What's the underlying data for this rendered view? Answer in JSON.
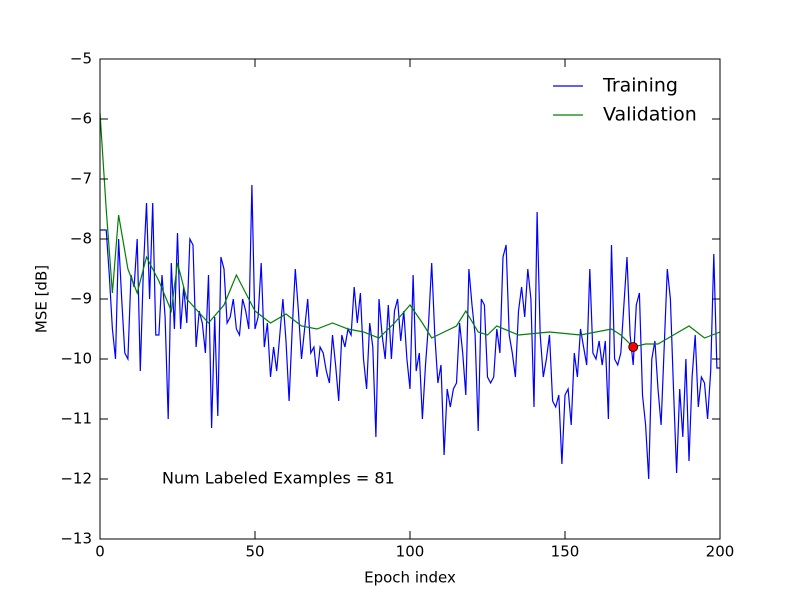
{
  "chart_data": {
    "type": "line",
    "xlabel": "Epoch index",
    "ylabel": "MSE [dB]",
    "annotation": "Num Labeled Examples = 81",
    "annotation_x": 20,
    "annotation_y": -12,
    "xlim": [
      0,
      200
    ],
    "ylim": [
      -13,
      -5
    ],
    "xticks": [
      0,
      50,
      100,
      150,
      200
    ],
    "yticks": [
      {
        "value": -13,
        "label": "−13"
      },
      {
        "value": -12,
        "label": "−12"
      },
      {
        "value": -11,
        "label": "−11"
      },
      {
        "value": -10,
        "label": "−10"
      },
      {
        "value": -9,
        "label": "−9"
      },
      {
        "value": -8,
        "label": "−8"
      },
      {
        "value": -7,
        "label": "−7"
      },
      {
        "value": -6,
        "label": "−6"
      },
      {
        "value": -5,
        "label": "−5"
      }
    ],
    "legend": "upper right",
    "series": [
      {
        "name": "Training",
        "color": "#0000ff",
        "x": [
          0,
          1,
          2,
          3,
          4,
          5,
          6,
          7,
          8,
          9,
          10,
          11,
          12,
          13,
          14,
          15,
          16,
          17,
          18,
          19,
          20,
          21,
          22,
          23,
          24,
          25,
          26,
          27,
          28,
          29,
          30,
          31,
          32,
          33,
          34,
          35,
          36,
          37,
          38,
          39,
          40,
          41,
          42,
          43,
          44,
          45,
          46,
          47,
          48,
          49,
          50,
          51,
          52,
          53,
          54,
          55,
          56,
          57,
          58,
          59,
          60,
          61,
          62,
          63,
          64,
          65,
          66,
          67,
          68,
          69,
          70,
          71,
          72,
          73,
          74,
          75,
          76,
          77,
          78,
          79,
          80,
          81,
          82,
          83,
          84,
          85,
          86,
          87,
          88,
          89,
          90,
          91,
          92,
          93,
          94,
          95,
          96,
          97,
          98,
          99,
          100,
          101,
          102,
          103,
          104,
          105,
          106,
          107,
          108,
          109,
          110,
          111,
          112,
          113,
          114,
          115,
          116,
          117,
          118,
          119,
          120,
          121,
          122,
          123,
          124,
          125,
          126,
          127,
          128,
          129,
          130,
          131,
          132,
          133,
          134,
          135,
          136,
          137,
          138,
          139,
          140,
          141,
          142,
          143,
          144,
          145,
          146,
          147,
          148,
          149,
          150,
          151,
          152,
          153,
          154,
          155,
          156,
          157,
          158,
          159,
          160,
          161,
          162,
          163,
          164,
          165,
          166,
          167,
          168,
          169,
          170,
          171,
          172,
          173,
          174,
          175,
          176,
          177,
          178,
          179,
          180,
          181,
          182,
          183,
          184,
          185,
          186,
          187,
          188,
          189,
          190,
          191,
          192,
          193,
          194,
          195,
          196,
          197,
          198,
          199,
          200
        ],
        "values": [
          -7.85,
          -7.85,
          -7.85,
          -8.6,
          -9.5,
          -10.0,
          -8.0,
          -9.0,
          -9.9,
          -10.0,
          -8.6,
          -8.8,
          -8.0,
          -10.2,
          -8.5,
          -7.4,
          -9.0,
          -7.4,
          -9.6,
          -9.6,
          -8.6,
          -9.3,
          -11.0,
          -8.4,
          -9.5,
          -7.9,
          -9.5,
          -8.8,
          -9.4,
          -8.0,
          -8.1,
          -9.8,
          -9.2,
          -9.4,
          -9.9,
          -8.6,
          -11.15,
          -9.3,
          -10.95,
          -8.3,
          -8.5,
          -9.4,
          -9.3,
          -9.0,
          -9.5,
          -9.6,
          -9.0,
          -9.2,
          -9.5,
          -7.1,
          -9.5,
          -9.3,
          -8.4,
          -9.8,
          -9.4,
          -10.3,
          -9.8,
          -10.2,
          -9.6,
          -9.0,
          -9.7,
          -10.7,
          -9.5,
          -8.5,
          -9.2,
          -10.0,
          -9.5,
          -9.0,
          -9.9,
          -9.8,
          -10.3,
          -9.8,
          -9.9,
          -10.2,
          -10.4,
          -9.6,
          -10.1,
          -10.7,
          -9.6,
          -9.8,
          -9.5,
          -9.6,
          -8.8,
          -9.4,
          -8.9,
          -10.0,
          -10.5,
          -9.4,
          -9.8,
          -11.3,
          -9.0,
          -9.6,
          -10.0,
          -9.1,
          -10.0,
          -9.2,
          -9.0,
          -9.7,
          -9.2,
          -10.0,
          -10.5,
          -8.6,
          -10.2,
          -9.9,
          -11.0,
          -10.1,
          -9.4,
          -8.4,
          -9.6,
          -10.4,
          -10.1,
          -11.6,
          -10.5,
          -10.8,
          -10.5,
          -10.4,
          -9.4,
          -9.9,
          -10.6,
          -8.5,
          -9.1,
          -9.6,
          -11.2,
          -9.0,
          -9.1,
          -10.3,
          -10.4,
          -10.3,
          -9.5,
          -9.9,
          -8.3,
          -8.1,
          -9.6,
          -9.9,
          -10.3,
          -9.2,
          -8.8,
          -9.3,
          -8.5,
          -9.0,
          -10.8,
          -7.55,
          -9.6,
          -10.3,
          -10.0,
          -9.6,
          -10.7,
          -10.8,
          -10.6,
          -11.75,
          -10.6,
          -10.5,
          -11.1,
          -9.9,
          -10.3,
          -9.5,
          -9.8,
          -10.1,
          -8.5,
          -9.9,
          -10.0,
          -9.7,
          -10.1,
          -9.7,
          -11.0,
          -8.1,
          -10.0,
          -10.1,
          -9.9,
          -9.1,
          -8.3,
          -9.6,
          -10.1,
          -9.1,
          -8.9,
          -10.6,
          -11.1,
          -12.0,
          -10.0,
          -9.7,
          -10.5,
          -11.1,
          -9.8,
          -8.5,
          -9.0,
          -10.5,
          -11.9,
          -10.5,
          -11.3,
          -10.0,
          -11.7,
          -10.3,
          -9.6,
          -10.8,
          -10.3,
          -10.4,
          -11.0,
          -10.2,
          -8.25,
          -10.15,
          -10.15
        ]
      },
      {
        "name": "Validation",
        "color": "#008000",
        "x": [
          0,
          2,
          4,
          6,
          9,
          12,
          15,
          19,
          23,
          25,
          28,
          35,
          40,
          44,
          50,
          55,
          60,
          65,
          70,
          75,
          80,
          85,
          90,
          95,
          100,
          104,
          107,
          111,
          115,
          118,
          122,
          125,
          128,
          135,
          145,
          155,
          165,
          168,
          172,
          176,
          180,
          185,
          190,
          195,
          200
        ],
        "values": [
          -5.9,
          -7.5,
          -8.9,
          -7.6,
          -8.5,
          -8.9,
          -8.3,
          -8.7,
          -9.2,
          -8.4,
          -9.0,
          -9.4,
          -9.1,
          -8.6,
          -9.2,
          -9.4,
          -9.25,
          -9.45,
          -9.5,
          -9.4,
          -9.5,
          -9.55,
          -9.65,
          -9.4,
          -9.1,
          -9.4,
          -9.65,
          -9.55,
          -9.45,
          -9.2,
          -9.55,
          -9.6,
          -9.45,
          -9.6,
          -9.55,
          -9.6,
          -9.5,
          -9.6,
          -9.8,
          -9.75,
          -9.75,
          -9.6,
          -9.45,
          -9.65,
          -9.55
        ]
      }
    ],
    "highlight": {
      "x": 172,
      "y": -9.8,
      "color": "#ff0000"
    }
  }
}
